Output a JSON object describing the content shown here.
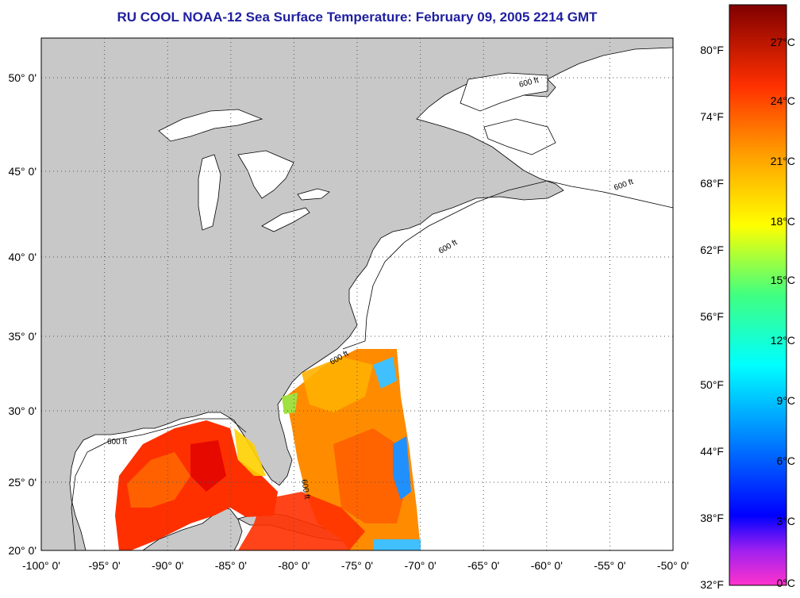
{
  "title": "RU COOL  NOAA-12  Sea Surface Temperature:  February 09, 2005 2214 GMT",
  "map": {
    "lon_range": [
      -100,
      -50
    ],
    "lat_range": [
      20,
      52
    ],
    "lon_ticks": [
      "-100° 0'",
      "-95° 0'",
      "-90° 0'",
      "-85° 0'",
      "-80° 0'",
      "-75° 0'",
      "-70° 0'",
      "-65° 0'",
      "-60° 0'",
      "-55° 0'",
      "-50° 0'"
    ],
    "lat_ticks": [
      "50° 0'",
      "45° 0'",
      "40° 0'",
      "35° 0'",
      "30° 0'",
      "25° 0'",
      "20° 0'"
    ],
    "bathymetry_label": "600 ft",
    "land_color": "#c8c8c8",
    "ocean_color": "#ffffff"
  },
  "colorbar": {
    "celsius_labels": [
      "27°C",
      "24°C",
      "21°C",
      "18°C",
      "15°C",
      "12°C",
      "9°C",
      "6°C",
      "3°C",
      "0°C"
    ],
    "fahrenheit_labels": [
      "80°F",
      "74°F",
      "68°F",
      "62°F",
      "56°F",
      "50°F",
      "44°F",
      "38°F",
      "32°F"
    ]
  }
}
